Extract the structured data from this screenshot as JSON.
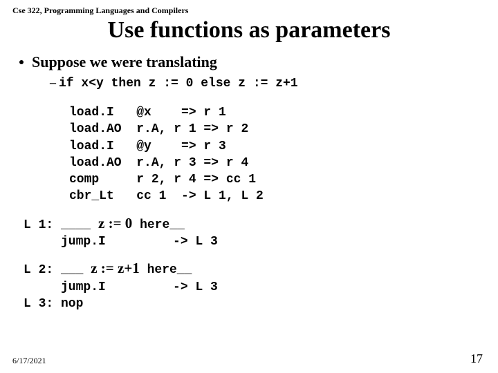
{
  "header": "Cse 322, Programming Languages and Compilers",
  "title": "Use functions as parameters",
  "bullet": "Suppose we were translating",
  "code_if": "if  x<y  then z := 0  else z := z+1",
  "block1": "load.I   @x    => r 1\nload.AO  r.A, r 1 => r 2\nload.I   @y    => r 3\nload.AO  r.A, r 3 => r 4\ncomp     r 2, r 4 => cc 1\ncbr_Lt   cc 1  -> L 1, L 2",
  "l1_prefix": "L 1: ____ ",
  "l1_mid": "z := 0",
  "l1_suffix": " here__",
  "l1_jump": "     jump.I         -> L 3",
  "l2_prefix": "L 2: ___ ",
  "l2_mid": "z := z+1",
  "l2_suffix": " here__",
  "l2_jump": "     jump.I         -> L 3",
  "l3": "L 3: nop",
  "date": "6/17/2021",
  "page": "17"
}
